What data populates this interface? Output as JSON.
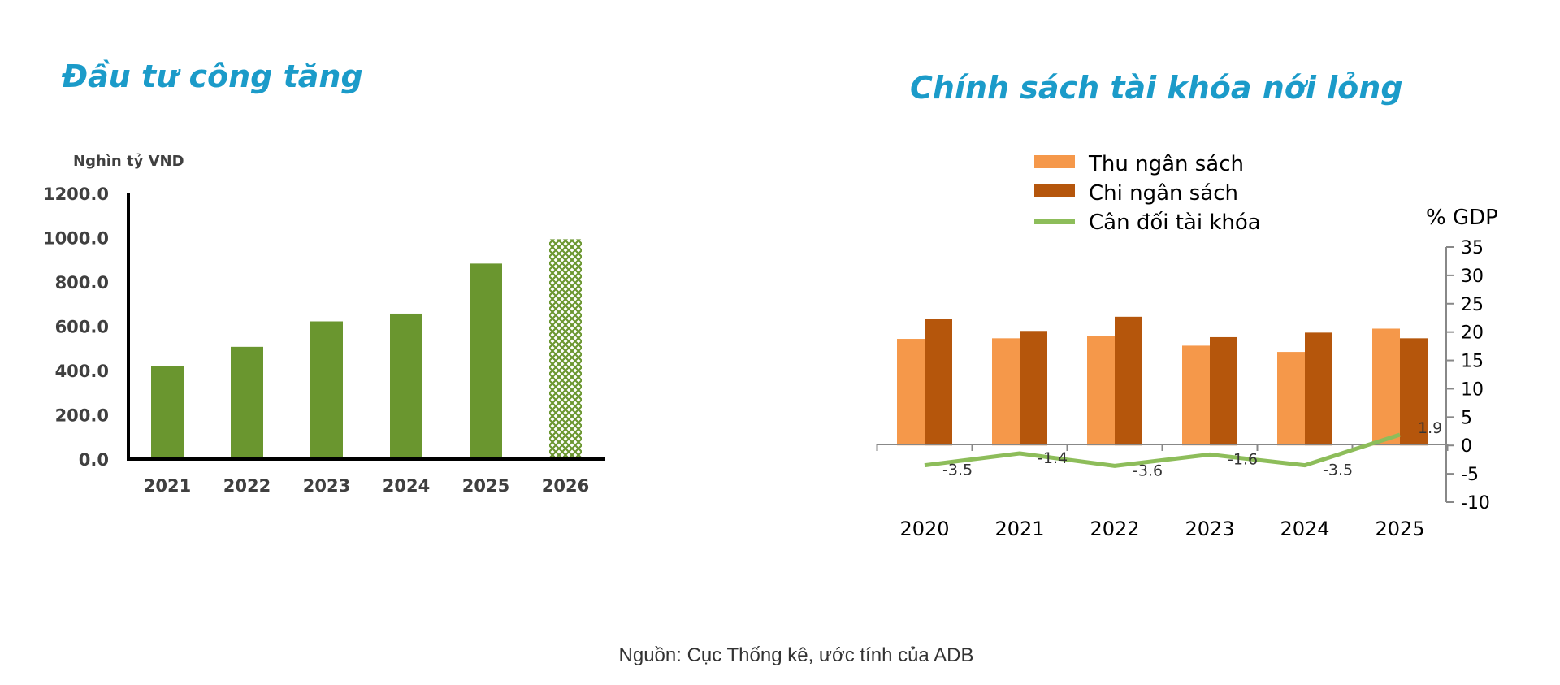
{
  "source_note": "Nguồn: Cục Thống kê, ước tính của ADB",
  "chart_data": [
    {
      "type": "bar",
      "title": "Đầu tư công tăng",
      "ylabel": "Nghìn tỷ VND",
      "categories": [
        "2021",
        "2022",
        "2023",
        "2024",
        "2025",
        "2026"
      ],
      "values": [
        420,
        507,
        622,
        657,
        883,
        993
      ],
      "ylim": [
        0,
        1200
      ],
      "yticks": [
        "0.0",
        "200.0",
        "400.0",
        "600.0",
        "800.0",
        "1000.0",
        "1200.0"
      ],
      "estimated_last": true,
      "grid": false,
      "colors": {
        "bar": "#6a962f",
        "axis": "#000000"
      }
    },
    {
      "type": "bar",
      "title": "Chính sách tài khóa nới lỏng",
      "ylabel": "% GDP",
      "categories": [
        "2020",
        "2021",
        "2022",
        "2023",
        "2024",
        "2025"
      ],
      "series": [
        {
          "name": "Thu ngân sách",
          "values": [
            18.8,
            18.9,
            19.3,
            17.6,
            16.5,
            20.6
          ],
          "color": "#f5984a"
        },
        {
          "name": "Chi ngân sách",
          "values": [
            22.3,
            20.2,
            22.7,
            19.1,
            19.9,
            18.9
          ],
          "color": "#b5560c"
        },
        {
          "name": "Cân đối tài khóa",
          "type": "line",
          "values": [
            -3.5,
            -1.4,
            -3.6,
            -1.6,
            -3.5,
            1.9
          ],
          "labels": [
            "-3.5",
            "-1.4",
            "-3.6",
            "-1.6",
            "-3.5",
            "1.9"
          ],
          "color": "#8dbd5a"
        }
      ],
      "ylim": [
        -10,
        35
      ],
      "yticks": [
        "-10",
        "-5",
        "0",
        "5",
        "10",
        "15",
        "20",
        "25",
        "30",
        "35"
      ],
      "legend": "top",
      "grid": false
    }
  ]
}
